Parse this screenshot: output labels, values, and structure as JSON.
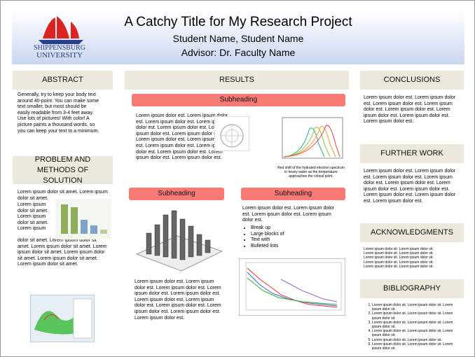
{
  "header": {
    "title": "A Catchy Title for My Research Project",
    "students": "Student Name, Student Name",
    "advisor": "Advisor: Dr. Faculty Name",
    "logo": {
      "line1": "SHIPPENSBURG",
      "line2": "UNIVERSITY"
    }
  },
  "abstract": {
    "heading": "ABSTRACT",
    "text": "Generally, try to keep your body text around 40-point.  You can make some text smaller, but most should be easily readable from 3-4 feet away.  Use lots of pictures!  With color!  A picture paints a thousand words, so you can keep your text to a minimum."
  },
  "methods": {
    "heading": "PROBLEM AND METHODS OF SOLUTION",
    "text1": "Lorem ipsum dolor sit amet. Lorem ipsum dolor sit amet.",
    "text2": "Lorem ipsum dolor sit amet. Lorem ipsum dolor sit amet. Lorem ipsum",
    "text3": "dolor sit amet.  Lorem ipsum dolor sit amet.  Lorem ipsum dolor sit amet.  Lorem ipsum dolor sit amet.  Lorem ipsum dolor sit amet. Lorem ipsum dolor sit amet. Lorem ipsum dolor sit amet."
  },
  "results": {
    "heading": "RESULTS",
    "sub1": {
      "heading": "Subheading",
      "text": "Lorem ipsum dolor est.  Lorem ipsum dolor est. Lorem ipsum dolor est. Lorem ipsum dolor est. Lorem ipsum dolor est. Lorem ipsum dolor est. Lorem ipsum dolor est. Lorem ipsum dolor est. Lorem ipsum dolor est. Lorem ipsum dolor est. Lorem ipsum dolor est. Lorem ipsum dolor est. Lorem ipsum dolor est. Lorem ipsum dolor est.",
      "caption": "Red shift of the hydrated electron spectrum in heavy water as the temperature approaches the critical point."
    },
    "sub2": {
      "heading": "Subheading",
      "text": "Lorem ipsum dolor est.  Lorem ipsum dolor est. Lorem ipsum dolor est. Lorem ipsum dolor est. Lorem ipsum dolor est. Lorem ipsum dolor est. Lorem ipsum dolor est. Lorem ipsum dolor est. Lorem ipsum dolor est. Lorem ipsum dolor est. Lorem ipsum dolor est."
    },
    "sub3": {
      "heading": "Subheading",
      "text": "Lorem ipsum dolor est. Lorem  ipsum dolor est. Lorem ipsum dolor est. Lorem ipsum dolor est.",
      "bullets": [
        "Break up",
        "Large blocks of",
        "Text with",
        "Bulleted lists"
      ]
    }
  },
  "conclusions": {
    "heading": "CONCLUSIONS",
    "text": "Lorem ipsum dolor est. Lorem ipsum dolor est. Lorem ipsum dolor est. Lorem ipsum dolor est.  Lorem ipsum dolor est. Lorem ipsum dolor est. Lorem ipsum dolor est. Lorem ipsum dolor est."
  },
  "further_work": {
    "heading": "FURTHER WORK",
    "text": "Lorem ipsum dolor est. Lorem ipsum dolor est. Lorem ipsum dolor est. Lorem ipsum dolor est. Lorem ipsum dolor est. Lorem ipsum dolor est. Lorem ipsum dolor est. Lorem ipsum dolor est. Lorem ipsum dolor est. Lorem ipsum dolor est."
  },
  "acknowledgments": {
    "heading": "ACKNOWLEDGMENTS",
    "text": "Lorem ipsum dolor sit. Lorem ipsum dolor sit. Lorem ipsum dolor sit. Lorem ipsum dolor sit. Lorem ipsum dolor sit. Lorem ipsum dolor sit. Lorem ipsum dolor sit. Lorem ipsum dolor sit. Lorem ipsum dolor sit. Lorem ipsum dolor sit."
  },
  "bibliography": {
    "heading": "BIBLIOGRAPHY",
    "items": [
      "Lorem ipsum dolor sit. Lorem ipsum dolor sit. Lorem ipsum dolor sit.",
      "Lorem ipsum dolor sit. Lorem ipsum dolor sit. Lorem ipsum dolor sit.",
      "Lorem ipsum dolor sit. Lorem ipsum dolor sit. Lorem ipsum dolor sit.",
      "Lorem ipsum dolor sit. Lorem ipsum dolor sit. Lorem ipsum dolor sit.",
      "Lorem ipsum dolor sit. Lorem ipsum dolor sit.",
      "Lorem ipsum dolor sit. Lorem ipsum dolor sit. Lorem ipsum dolor sit."
    ]
  }
}
